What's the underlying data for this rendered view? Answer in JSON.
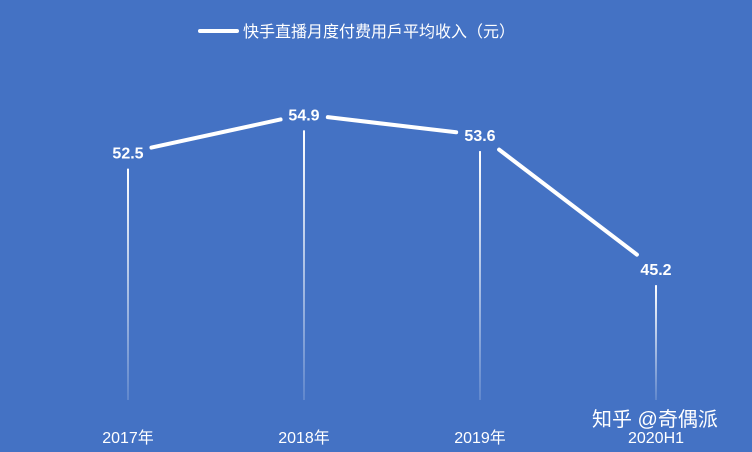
{
  "watermark": "知乎 @奇偶派",
  "colors": {
    "background": "#4472c4",
    "line": "#ffffff",
    "text": "#ffffff"
  },
  "chart_data": {
    "type": "line",
    "categories": [
      "2017年",
      "2018年",
      "2019年",
      "2020H1"
    ],
    "series": [
      {
        "name": "快手直播月度付费用戶平均收入（元）",
        "values": [
          52.5,
          54.9,
          53.6,
          45.2
        ]
      }
    ],
    "data_labels": [
      "52.5",
      "54.9",
      "53.6",
      "45.2"
    ],
    "legend": "top-center",
    "grid": false,
    "drop_lines": true,
    "y_axis_visible": false,
    "ylim": [
      37,
      55.8
    ]
  }
}
